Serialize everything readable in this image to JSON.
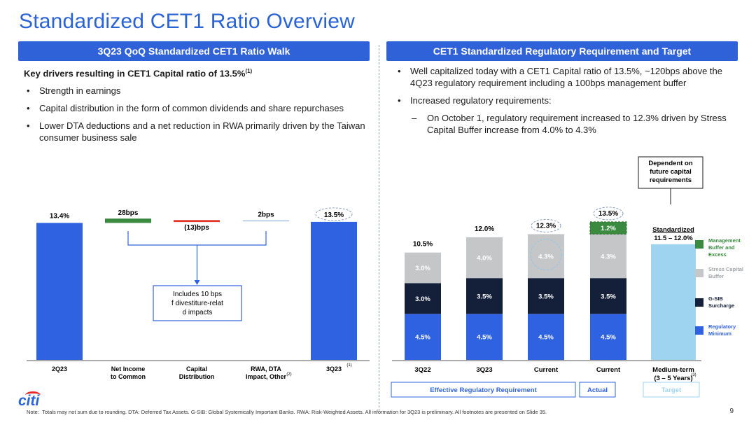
{
  "title": "Standardized CET1 Ratio Overview",
  "left": {
    "header": "3Q23 QoQ Standardized CET1 Ratio Walk",
    "heading": "Key drivers resulting in CET1 Capital ratio of 13.5%",
    "heading_fn": "(1)",
    "bullets": [
      "Strength in earnings",
      "Capital distribution in the form of common dividends and share repurchases",
      "Lower DTA deductions and a net reduction in RWA primarily driven by the Taiwan consumer business sale"
    ]
  },
  "right": {
    "header": "CET1 Standardized Regulatory Requirement and Target",
    "bullets": [
      "Well capitalized today with a CET1 Capital ratio of 13.5%, ~120bps above the 4Q23 regulatory requirement including a 100bps management buffer",
      "Increased regulatory requirements:"
    ],
    "sub_bullet": "On October 1, regulatory requirement increased to 12.3% driven by Stress Capital Buffer increase from 4.0% to 4.3%"
  },
  "chart_data": [
    {
      "type": "bar",
      "subtype": "waterfall",
      "categories": [
        "2Q23",
        "Net Income to Common",
        "Capital Distribution",
        "RWA, DTA Impact, Other",
        "3Q23"
      ],
      "category_lines": [
        [
          "2Q23"
        ],
        [
          "Net Income",
          "to Common"
        ],
        [
          "Capital",
          "Distribution"
        ],
        [
          "RWA, DTA",
          "Impact, Other"
        ],
        [
          "3Q23"
        ]
      ],
      "category_footnotes": [
        "",
        "",
        "",
        "(2)",
        "(1)"
      ],
      "values_pct": [
        13.4,
        0.28,
        -0.13,
        0.02,
        13.5
      ],
      "labels": [
        "13.4%",
        "28bps",
        "(13)bps",
        "2bps",
        "13.5%"
      ],
      "value_type": [
        "total",
        "delta",
        "delta",
        "delta",
        "total"
      ],
      "callout": "Includes 10 bps of divestiture-related impacts",
      "colors": {
        "total": "#2f62e0",
        "increase": "#3a8a3f",
        "decrease": "#e03a2f",
        "small": "#a9bfe0"
      }
    },
    {
      "type": "bar",
      "subtype": "stacked",
      "categories": [
        "3Q22",
        "3Q23",
        "Current",
        "Current",
        "Medium-term"
      ],
      "category_sub": [
        "",
        "",
        "",
        "",
        "(3 – 5 Years)"
      ],
      "category_footnotes": [
        "",
        "",
        "",
        "",
        "(3)"
      ],
      "series": [
        {
          "name": "Regulatory Minimum",
          "color": "#2f62e0",
          "values": [
            4.5,
            4.5,
            4.5,
            4.5,
            null
          ],
          "labels": [
            "4.5%",
            "4.5%",
            "4.5%",
            "4.5%",
            ""
          ]
        },
        {
          "name": "G-SIB Surcharge",
          "color": "#14203a",
          "values": [
            3.0,
            3.5,
            3.5,
            3.5,
            null
          ],
          "labels": [
            "3.0%",
            "3.5%",
            "3.5%",
            "3.5%",
            ""
          ]
        },
        {
          "name": "Stress Capital Buffer",
          "color": "#c4c6c8",
          "values": [
            3.0,
            4.0,
            4.3,
            4.3,
            null
          ],
          "labels": [
            "3.0%",
            "4.0%",
            "4.3%",
            "4.3%",
            ""
          ]
        },
        {
          "name": "Management Buffer and Excess",
          "color": "#3a8a3f",
          "values": [
            null,
            null,
            null,
            1.2,
            null
          ],
          "labels": [
            "",
            "",
            "",
            "1.2%",
            ""
          ]
        }
      ],
      "totals": [
        "10.5%",
        "12.0%",
        "12.3%",
        "13.5%",
        ""
      ],
      "target": {
        "label": "Standardized",
        "range_label": "11.5 – 12.0%",
        "value": 12.0,
        "color": "#9ed4f0"
      },
      "callout": "Dependent on future capital requirements",
      "groups": [
        {
          "label": "Effective Regulatory Requirement",
          "color": "#2f62e0"
        },
        {
          "label": "Actual",
          "color": "#2f62e0"
        },
        {
          "label": "Target",
          "color": "#9ed4f0"
        }
      ]
    }
  ],
  "footer": {
    "note_label": "Note:",
    "note": "Totals may not sum due to rounding. DTA: Deferred Tax Assets. G-SIB: Global Systemically Important Banks. RWA: Risk-Weighted Assets. All information for 3Q23 is preliminary. All footnotes are presented on Slide 35.",
    "page": "9",
    "logo": "citi"
  }
}
